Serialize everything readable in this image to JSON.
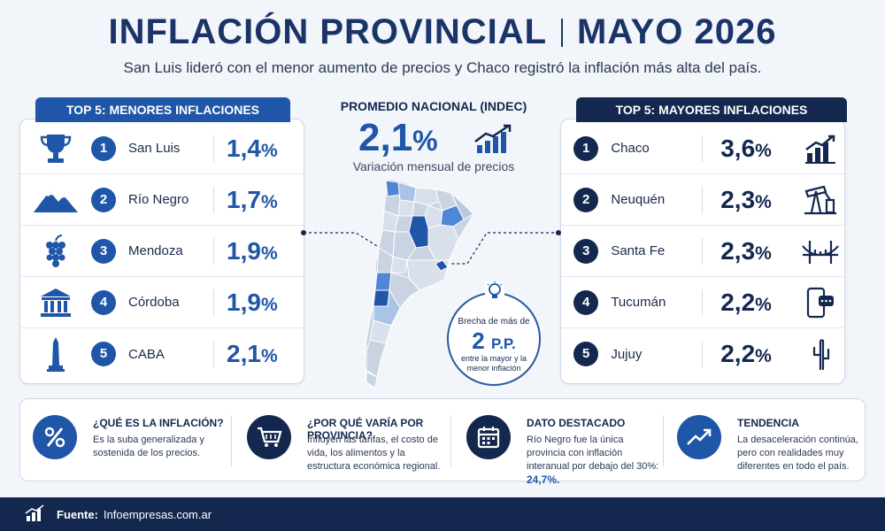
{
  "header": {
    "title_left": "INFLACIÓN PROVINCIAL",
    "title_right": "MAYO 2026",
    "subtitle": "San Luis lideró con el menor aumento de precios y Chaco registró la inflación más alta del país."
  },
  "lowest": {
    "tab": "TOP 5: MENORES INFLACIONES",
    "rows": [
      {
        "rank": "1",
        "name": "San Luis",
        "value": "1,4",
        "icon": "trophy-icon"
      },
      {
        "rank": "2",
        "name": "Río Negro",
        "value": "1,7",
        "icon": "mountain-icon"
      },
      {
        "rank": "3",
        "name": "Mendoza",
        "value": "1,9",
        "icon": "grapes-icon"
      },
      {
        "rank": "4",
        "name": "Córdoba",
        "value": "1,9",
        "icon": "building-icon"
      },
      {
        "rank": "5",
        "name": "CABA",
        "value": "2,1",
        "icon": "obelisk-icon"
      }
    ]
  },
  "highest": {
    "tab": "TOP 5: MAYORES INFLACIONES",
    "rows": [
      {
        "rank": "1",
        "name": "Chaco",
        "value": "3,6",
        "icon": "bar-chart-icon"
      },
      {
        "rank": "2",
        "name": "Neuquén",
        "value": "2,3",
        "icon": "oil-pump-icon"
      },
      {
        "rank": "3",
        "name": "Santa Fe",
        "value": "2,3",
        "icon": "bridge-icon"
      },
      {
        "rank": "4",
        "name": "Tucumán",
        "value": "2,2",
        "icon": "phone-chat-icon"
      },
      {
        "rank": "5",
        "name": "Jujuy",
        "value": "2,2",
        "icon": "cactus-icon"
      }
    ]
  },
  "percent_sign": "%",
  "national": {
    "heading": "PROMEDIO NACIONAL (INDEC)",
    "value": "2,1",
    "caption": "Variación mensual de precios"
  },
  "gap": {
    "line1": "Brecha de más de",
    "value": "2",
    "unit": "P.P.",
    "line3": "entre la mayor y la menor inflación"
  },
  "info": [
    {
      "icon": "percent-icon",
      "heading": "¿QUÉ ES LA INFLACIÓN?",
      "text": "Es la suba generalizada y sostenida de los precios."
    },
    {
      "icon": "cart-icon",
      "heading": "¿POR QUÉ VARÍA POR PROVINCIA?",
      "text": "Influyen las tarifas, el costo de vida, los alimentos y la estructura económica regional."
    },
    {
      "icon": "calendar-icon",
      "heading": "DATO DESTACADO",
      "text": "Río Negro fue la única provincia con inflación interanual por debajo del 30%:",
      "highlight": "24,7%."
    },
    {
      "icon": "trend-up-icon",
      "heading": "TENDENCIA",
      "text": "La desaceleración continúa, pero con realidades muy diferentes en todo el país."
    }
  ],
  "footer": {
    "label": "Fuente:",
    "source": "Infoempresas.com.ar"
  },
  "colors": {
    "navy": "#14284f",
    "blue": "#1f56a8",
    "background": "#f2f5f9"
  }
}
